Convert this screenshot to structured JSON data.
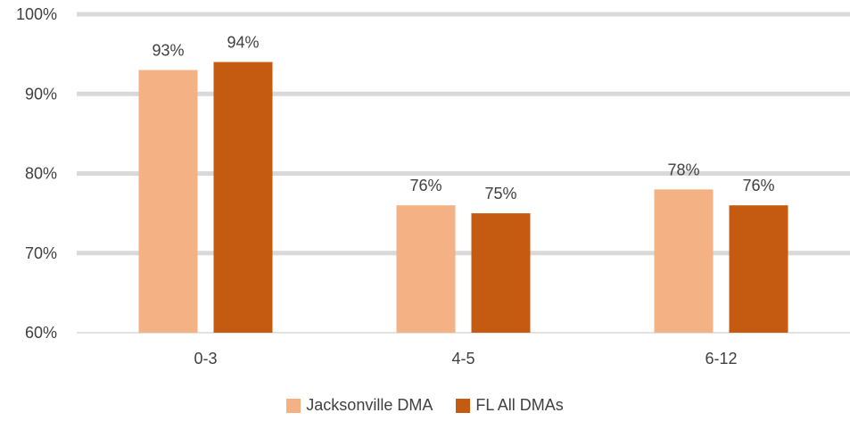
{
  "chart_data": {
    "type": "bar",
    "categories": [
      "0-3",
      "4-5",
      "6-12"
    ],
    "series": [
      {
        "name": "Jacksonville DMA",
        "values": [
          93,
          76,
          78
        ],
        "labels": [
          "93%",
          "76%",
          "78%"
        ],
        "color": "#F4B183"
      },
      {
        "name": "FL All DMAs",
        "values": [
          94,
          75,
          76
        ],
        "labels": [
          "94%",
          "75%",
          "76%"
        ],
        "color": "#C55A11"
      }
    ],
    "title": "",
    "xlabel": "",
    "ylabel": "",
    "ylim": [
      60,
      100
    ],
    "yticks": [
      "60%",
      "70%",
      "80%",
      "90%",
      "100%"
    ],
    "grid": true,
    "legend_position": "bottom"
  }
}
